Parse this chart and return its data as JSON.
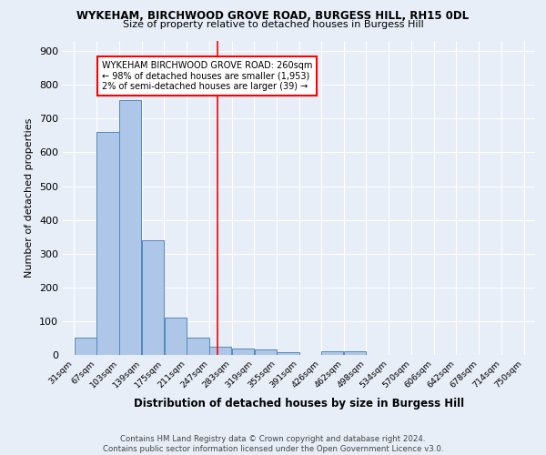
{
  "title1": "WYKEHAM, BIRCHWOOD GROVE ROAD, BURGESS HILL, RH15 0DL",
  "title2": "Size of property relative to detached houses in Burgess Hill",
  "xlabel": "Distribution of detached houses by size in Burgess Hill",
  "ylabel": "Number of detached properties",
  "bin_labels": [
    "31sqm",
    "67sqm",
    "103sqm",
    "139sqm",
    "175sqm",
    "211sqm",
    "247sqm",
    "283sqm",
    "319sqm",
    "355sqm",
    "391sqm",
    "426sqm",
    "462sqm",
    "498sqm",
    "534sqm",
    "570sqm",
    "606sqm",
    "642sqm",
    "678sqm",
    "714sqm",
    "750sqm"
  ],
  "bin_edges": [
    31,
    67,
    103,
    139,
    175,
    211,
    247,
    283,
    319,
    355,
    391,
    426,
    462,
    498,
    534,
    570,
    606,
    642,
    678,
    714,
    750
  ],
  "bar_heights": [
    50,
    660,
    755,
    340,
    110,
    50,
    25,
    20,
    15,
    8,
    0,
    10,
    10,
    0,
    0,
    0,
    0,
    0,
    0,
    0
  ],
  "bar_color": "#aec6e8",
  "bar_edge_color": "#5588bb",
  "red_line_x": 260,
  "annotation_text": "WYKEHAM BIRCHWOOD GROVE ROAD: 260sqm\n← 98% of detached houses are smaller (1,953)\n2% of semi-detached houses are larger (39) →",
  "annotation_box_color": "white",
  "annotation_box_edge": "red",
  "footer": "Contains HM Land Registry data © Crown copyright and database right 2024.\nContains public sector information licensed under the Open Government Licence v3.0.",
  "ylim": [
    0,
    930
  ],
  "background_color": "#e8eef8",
  "grid_color": "white"
}
